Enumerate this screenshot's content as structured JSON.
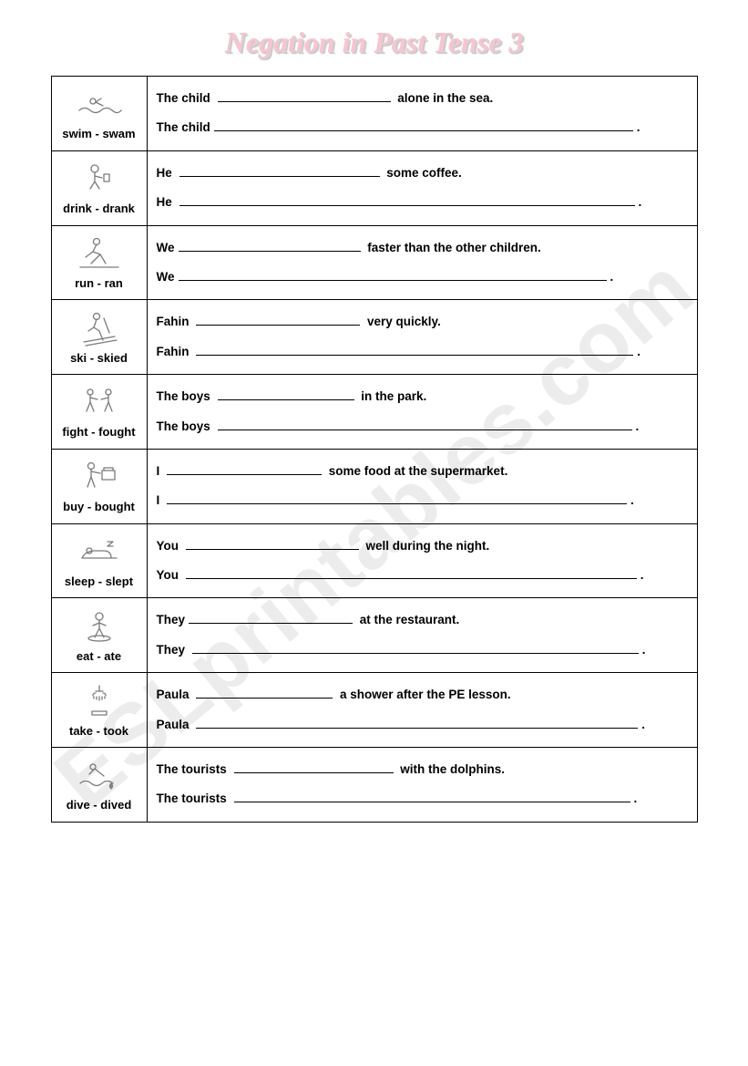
{
  "title": "Negation in Past Tense 3",
  "watermark": "ESLprintables.com",
  "colors": {
    "title_color": "#f7c5d0",
    "title_shadow": "#c0c0c0",
    "border": "#000000",
    "watermark_color": "rgba(200,200,200,0.35)"
  },
  "rows": [
    {
      "verb": "swim - swam",
      "icon": "swim",
      "s1_pre": "The child ",
      "s1_blank_w": 190,
      "s1_post": " alone in the sea.",
      "s2_pre": "The child",
      "s2_blank_w": 460,
      "s2_post": "."
    },
    {
      "verb": "drink - drank",
      "icon": "drink",
      "s1_pre": "He ",
      "s1_blank_w": 220,
      "s1_post": " some coffee.",
      "s2_pre": "He ",
      "s2_blank_w": 500,
      "s2_post": "."
    },
    {
      "verb": "run - ran",
      "icon": "run",
      "s1_pre": "We",
      "s1_blank_w": 200,
      "s1_post": " faster than the other children.",
      "s2_pre": "We",
      "s2_blank_w": 470,
      "s2_post": "."
    },
    {
      "verb": "ski - skied",
      "icon": "ski",
      "s1_pre": "Fahin ",
      "s1_blank_w": 180,
      "s1_post": " very quickly.",
      "s2_pre": "Fahin ",
      "s2_blank_w": 480,
      "s2_post": "."
    },
    {
      "verb": "fight - fought",
      "icon": "fight",
      "s1_pre": "The boys ",
      "s1_blank_w": 150,
      "s1_post": " in the park.",
      "s2_pre": "The boys ",
      "s2_blank_w": 455,
      "s2_post": "."
    },
    {
      "verb": "buy - bought",
      "icon": "buy",
      "s1_pre": "I ",
      "s1_blank_w": 170,
      "s1_post": " some food at the supermarket.",
      "s2_pre": "I ",
      "s2_blank_w": 505,
      "s2_post": "."
    },
    {
      "verb": "sleep - slept",
      "icon": "sleep",
      "s1_pre": "You ",
      "s1_blank_w": 190,
      "s1_post": " well during the night.",
      "s2_pre": "You ",
      "s2_blank_w": 495,
      "s2_post": "."
    },
    {
      "verb": "eat - ate",
      "icon": "eat",
      "s1_pre": "They",
      "s1_blank_w": 180,
      "s1_post": " at the restaurant.",
      "s2_pre": "They ",
      "s2_blank_w": 490,
      "s2_post": "."
    },
    {
      "verb": "take - took",
      "icon": "take",
      "s1_pre": "Paula ",
      "s1_blank_w": 150,
      "s1_post": " a shower after the PE lesson.",
      "s2_pre": "Paula ",
      "s2_blank_w": 485,
      "s2_post": "."
    },
    {
      "verb": "dive - dived",
      "icon": "dive",
      "s1_pre": "The tourists ",
      "s1_blank_w": 175,
      "s1_post": " with the dolphins.",
      "s2_pre": "The tourists ",
      "s2_blank_w": 435,
      "s2_post": "."
    }
  ]
}
